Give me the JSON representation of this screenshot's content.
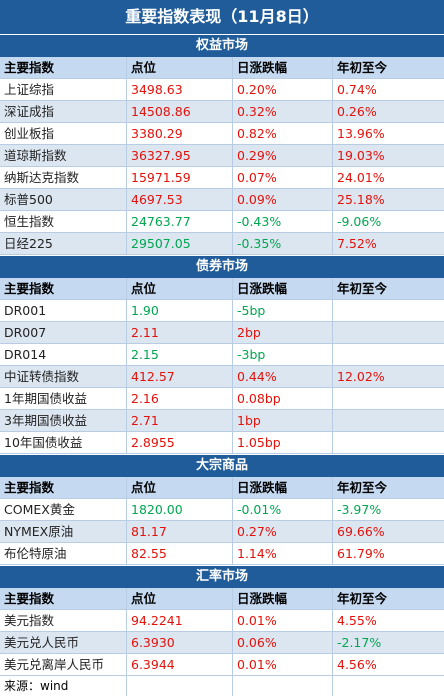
{
  "title": "重要指数表现（11月8日）",
  "headers": [
    "主要指数",
    "点位",
    "日涨跌幅",
    "年初至今"
  ],
  "colors": {
    "up": "#e3120b",
    "down": "#00a650",
    "header_bar": "#1f5c99",
    "col_header_bg": "#c5d9f1"
  },
  "sections": [
    {
      "name": "权益市场",
      "rows": [
        {
          "name": "上证综指",
          "value": "3498.63",
          "value_dir": "up",
          "daily": "0.20%",
          "daily_dir": "up",
          "ytd": "0.74%",
          "ytd_dir": "up"
        },
        {
          "name": "深证成指",
          "value": "14508.86",
          "value_dir": "up",
          "daily": "0.32%",
          "daily_dir": "up",
          "ytd": "0.26%",
          "ytd_dir": "up"
        },
        {
          "name": "创业板指",
          "value": "3380.29",
          "value_dir": "up",
          "daily": "0.82%",
          "daily_dir": "up",
          "ytd": "13.96%",
          "ytd_dir": "up"
        },
        {
          "name": "道琼斯指数",
          "value": "36327.95",
          "value_dir": "up",
          "daily": "0.29%",
          "daily_dir": "up",
          "ytd": "19.03%",
          "ytd_dir": "up"
        },
        {
          "name": "纳斯达克指数",
          "value": "15971.59",
          "value_dir": "up",
          "daily": "0.07%",
          "daily_dir": "up",
          "ytd": "24.01%",
          "ytd_dir": "up"
        },
        {
          "name": "标普500",
          "value": "4697.53",
          "value_dir": "up",
          "daily": "0.09%",
          "daily_dir": "up",
          "ytd": "25.18%",
          "ytd_dir": "up"
        },
        {
          "name": "恒生指数",
          "value": "24763.77",
          "value_dir": "down",
          "daily": "-0.43%",
          "daily_dir": "down",
          "ytd": "-9.06%",
          "ytd_dir": "down"
        },
        {
          "name": "日经225",
          "value": "29507.05",
          "value_dir": "down",
          "daily": "-0.35%",
          "daily_dir": "down",
          "ytd": "7.52%",
          "ytd_dir": "up"
        }
      ]
    },
    {
      "name": "债券市场",
      "rows": [
        {
          "name": "DR001",
          "value": "1.90",
          "value_dir": "down",
          "daily": "-5bp",
          "daily_dir": "down",
          "ytd": "",
          "ytd_dir": "up"
        },
        {
          "name": "DR007",
          "value": "2.11",
          "value_dir": "up",
          "daily": "2bp",
          "daily_dir": "up",
          "ytd": "",
          "ytd_dir": "up"
        },
        {
          "name": "DR014",
          "value": "2.15",
          "value_dir": "down",
          "daily": "-3bp",
          "daily_dir": "down",
          "ytd": "",
          "ytd_dir": "up"
        },
        {
          "name": "中证转债指数",
          "value": "412.57",
          "value_dir": "up",
          "daily": "0.44%",
          "daily_dir": "up",
          "ytd": "12.02%",
          "ytd_dir": "up"
        },
        {
          "name": "1年期国债收益",
          "value": "2.16",
          "value_dir": "up",
          "daily": "0.08bp",
          "daily_dir": "up",
          "ytd": "",
          "ytd_dir": "up"
        },
        {
          "name": "3年期国债收益",
          "value": "2.71",
          "value_dir": "up",
          "daily": "1bp",
          "daily_dir": "up",
          "ytd": "",
          "ytd_dir": "up"
        },
        {
          "name": "10年国债收益",
          "value": "2.8955",
          "value_dir": "up",
          "daily": "1.05bp",
          "daily_dir": "up",
          "ytd": "",
          "ytd_dir": "up"
        }
      ]
    },
    {
      "name": "大宗商品",
      "rows": [
        {
          "name": "COMEX黄金",
          "value": "1820.00",
          "value_dir": "down",
          "daily": "-0.01%",
          "daily_dir": "down",
          "ytd": "-3.97%",
          "ytd_dir": "down"
        },
        {
          "name": "NYMEX原油",
          "value": "81.17",
          "value_dir": "up",
          "daily": "0.27%",
          "daily_dir": "up",
          "ytd": "69.66%",
          "ytd_dir": "up"
        },
        {
          "name": "布伦特原油",
          "value": "82.55",
          "value_dir": "up",
          "daily": "1.14%",
          "daily_dir": "up",
          "ytd": "61.79%",
          "ytd_dir": "up"
        }
      ]
    },
    {
      "name": "汇率市场",
      "rows": [
        {
          "name": "美元指数",
          "value": "94.2241",
          "value_dir": "up",
          "daily": "0.01%",
          "daily_dir": "up",
          "ytd": "4.55%",
          "ytd_dir": "up"
        },
        {
          "name": "美元兑人民币",
          "value": "6.3930",
          "value_dir": "up",
          "daily": "0.06%",
          "daily_dir": "up",
          "ytd": "-2.17%",
          "ytd_dir": "down"
        },
        {
          "name": "美元兑离岸人民币",
          "value": "6.3944",
          "value_dir": "up",
          "daily": "0.01%",
          "daily_dir": "up",
          "ytd": "4.56%",
          "ytd_dir": "up"
        }
      ]
    }
  ],
  "source": "来源：wind"
}
